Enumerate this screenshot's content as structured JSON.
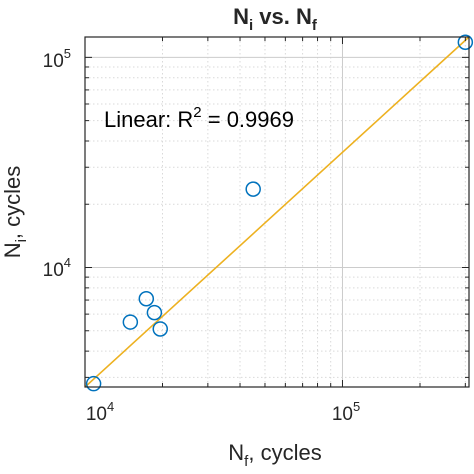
{
  "chart_data": {
    "type": "scatter",
    "title": {
      "main": "N",
      "sub1": "i",
      "mid": " vs. N",
      "sub2": "f"
    },
    "xlabel": {
      "main": "N",
      "sub": "f",
      "rest": ", cycles"
    },
    "ylabel": {
      "main": "N",
      "sub": "i",
      "rest": ", cycles"
    },
    "x_scale": "log",
    "y_scale": "log",
    "xlim": [
      10000,
      310000
    ],
    "ylim": [
      2700,
      125000
    ],
    "grid": true,
    "x_ticks": [
      {
        "value": 10000,
        "base": "10",
        "exp": "4"
      },
      {
        "value": 100000,
        "base": "10",
        "exp": "5"
      }
    ],
    "y_ticks": [
      {
        "value": 10000,
        "base": "10",
        "exp": "4"
      },
      {
        "value": 100000,
        "base": "10",
        "exp": "5"
      }
    ],
    "points": [
      {
        "x": 10800,
        "y": 2800
      },
      {
        "x": 15000,
        "y": 5500
      },
      {
        "x": 17300,
        "y": 7100
      },
      {
        "x": 18600,
        "y": 6100
      },
      {
        "x": 19600,
        "y": 5100
      },
      {
        "x": 45000,
        "y": 23600
      },
      {
        "x": 300000,
        "y": 118000
      }
    ],
    "fit_line": {
      "x": [
        10000,
        310000
      ],
      "y": [
        2700,
        125000
      ]
    },
    "annotation": {
      "prefix": "Linear: R",
      "sup": "2",
      "suffix": " = 0.9969"
    },
    "colors": {
      "marker": "#0072BD",
      "fit": "#EDB120",
      "grid": "#d9d9d9"
    }
  }
}
